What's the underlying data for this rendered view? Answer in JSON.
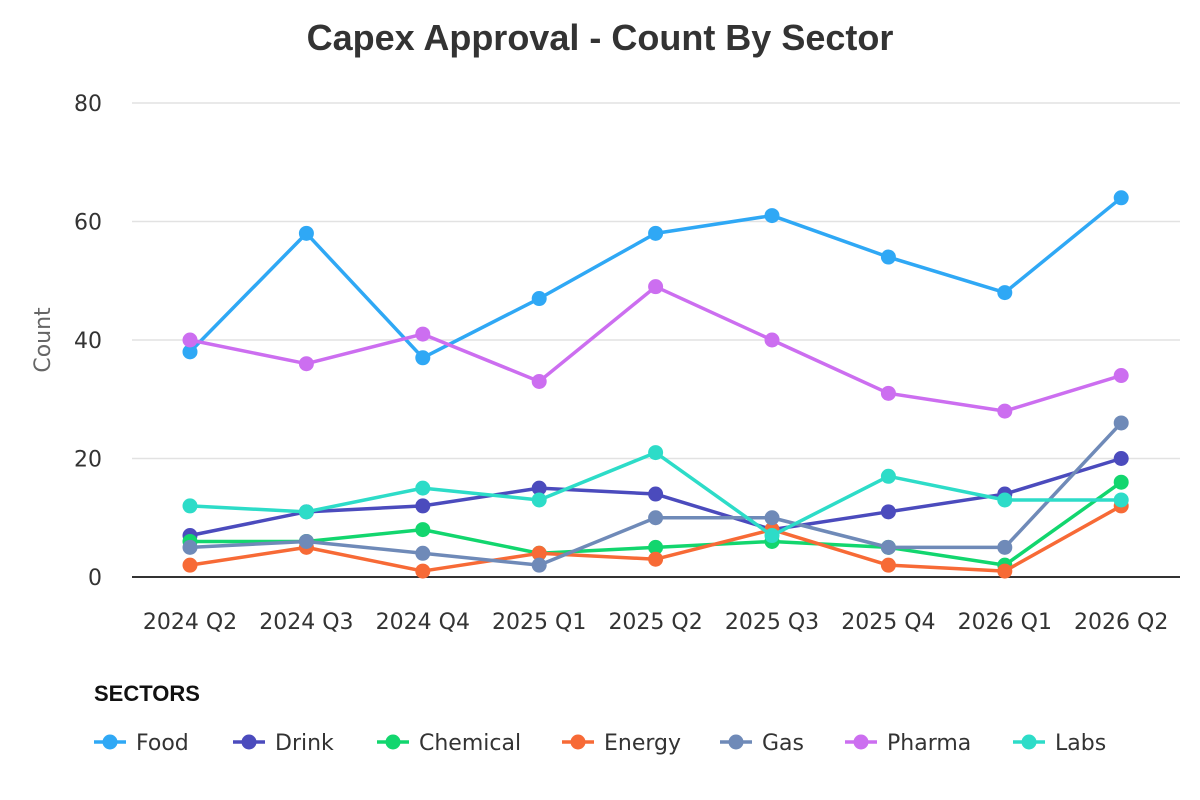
{
  "chart_data": {
    "type": "line",
    "title": "Capex Approval - Count By Sector",
    "ylabel": "Count",
    "xlabel": "",
    "ylim": [
      0,
      80
    ],
    "yticks": [
      0,
      20,
      40,
      60,
      80
    ],
    "grid": true,
    "legend_title": "SECTORS",
    "legend_position": "bottom",
    "categories": [
      "2024 Q2",
      "2024 Q3",
      "2024 Q4",
      "2025 Q1",
      "2025 Q2",
      "2025 Q3",
      "2025 Q4",
      "2026 Q1",
      "2026 Q2"
    ],
    "series": [
      {
        "name": "Food",
        "color": "#2fa8f5",
        "values": [
          38,
          58,
          37,
          47,
          58,
          61,
          54,
          48,
          64
        ]
      },
      {
        "name": "Drink",
        "color": "#4b4bbd",
        "values": [
          7,
          11,
          12,
          15,
          14,
          8,
          11,
          14,
          20
        ]
      },
      {
        "name": "Chemical",
        "color": "#12d66e",
        "values": [
          6,
          6,
          8,
          4,
          5,
          6,
          5,
          2,
          16
        ]
      },
      {
        "name": "Energy",
        "color": "#f76a36",
        "values": [
          2,
          5,
          1,
          4,
          3,
          8,
          2,
          1,
          12
        ]
      },
      {
        "name": "Gas",
        "color": "#6f8ab8",
        "values": [
          5,
          6,
          4,
          2,
          10,
          10,
          5,
          5,
          26
        ]
      },
      {
        "name": "Pharma",
        "color": "#cc6ef0",
        "values": [
          40,
          36,
          41,
          33,
          49,
          40,
          31,
          28,
          34
        ]
      },
      {
        "name": "Labs",
        "color": "#2ddcc8",
        "values": [
          12,
          11,
          15,
          13,
          21,
          7,
          17,
          13,
          13
        ]
      }
    ]
  }
}
